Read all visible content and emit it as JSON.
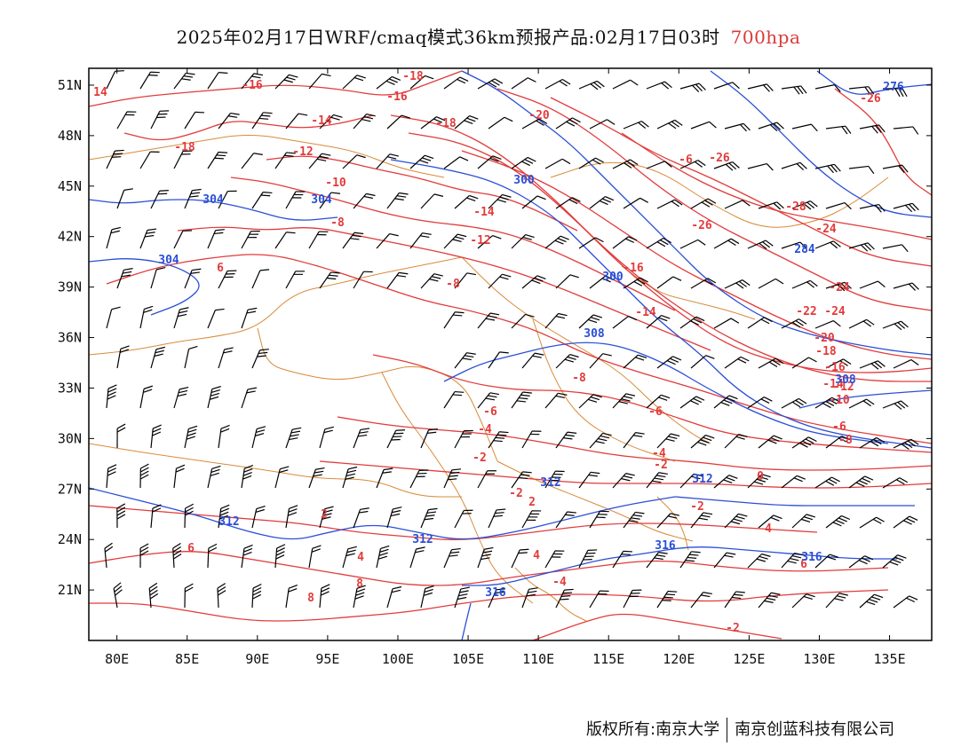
{
  "title": {
    "main": "2025年02月17日WRF/cmaq模式36km预报产品:02月17日03时",
    "level": "700hpa",
    "level_color": "#d93a3a"
  },
  "map": {
    "lon_labels": [
      "80E",
      "85E",
      "90E",
      "95E",
      "100E",
      "105E",
      "110E",
      "115E",
      "120E",
      "125E",
      "130E",
      "135E"
    ],
    "lon_values": [
      80,
      85,
      90,
      95,
      100,
      105,
      110,
      115,
      120,
      125,
      130,
      135
    ],
    "lat_labels": [
      "51N",
      "48N",
      "45N",
      "42N",
      "39N",
      "36N",
      "33N",
      "30N",
      "27N",
      "24N",
      "21N"
    ],
    "lat_values": [
      51,
      48,
      45,
      42,
      39,
      36,
      33,
      30,
      27,
      24,
      21
    ],
    "lon_range": [
      78,
      138
    ],
    "lat_range": [
      18,
      52
    ],
    "colors": {
      "temperature": "#e23b3b",
      "height": "#2a4fd6",
      "border": "#d98b3a",
      "barb": "#000000"
    },
    "temperature_labels": [
      "14",
      "-16",
      "-18",
      "-16",
      "-18",
      "-20",
      "-14",
      "-12",
      "-10",
      "-8",
      "-18",
      "-14",
      "-12",
      "-8",
      "-6",
      "-26",
      "-28",
      "-26",
      "-24",
      "-26",
      "-24",
      "-16",
      "-14",
      "-24",
      "-22",
      "-20",
      "-18",
      "-16",
      "-14",
      "-12",
      "-10",
      "-8",
      "-6",
      "-4",
      "-6",
      "-8",
      "-2",
      "-4",
      "-2",
      "0",
      "-2",
      "2",
      "-2",
      "2",
      "4",
      "4",
      "6",
      "6",
      "8",
      "8",
      "-4",
      "-2",
      "4",
      "6",
      "-6"
    ],
    "height_labels": [
      "304",
      "304",
      "304",
      "300",
      "276",
      "284",
      "300",
      "308",
      "312",
      "312",
      "312",
      "312",
      "316",
      "316",
      "316",
      "308"
    ]
  },
  "footer": {
    "copyright": "版权所有:南京大学",
    "company": "南京创蓝科技有限公司"
  }
}
